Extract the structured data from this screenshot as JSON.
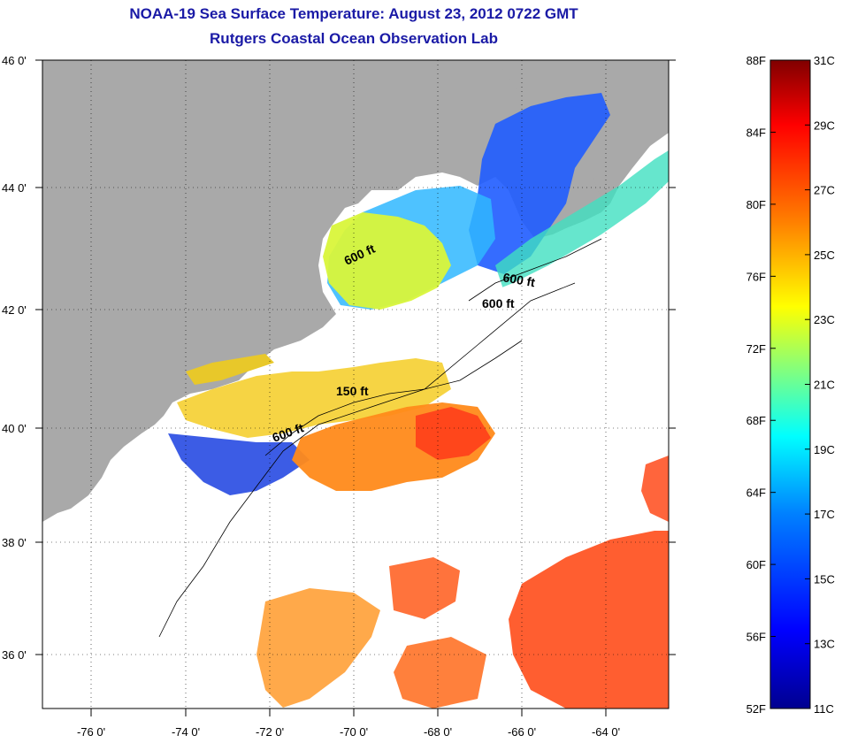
{
  "header": {
    "title": "NOAA-19 Sea Surface Temperature:  August 23, 2012 0722 GMT",
    "subtitle": "Rutgers Coastal Ocean Observation Lab"
  },
  "map": {
    "lon_ticks": [
      "-76 0'",
      "-74 0'",
      "-72 0'",
      "-70 0'",
      "-68 0'",
      "-66 0'",
      "-64 0'"
    ],
    "lat_ticks": [
      "46 0'",
      "44 0'",
      "42 0'",
      "40 0'",
      "38 0'",
      "36 0'"
    ],
    "contour_labels": [
      "600 ft",
      "600 ft",
      "600 ft",
      "150 ft",
      "600 ft"
    ],
    "colors": {
      "land": "#a9a9a9",
      "no_data": "#ffffff"
    }
  },
  "colorbar": {
    "f_labels": [
      "88F",
      "84F",
      "80F",
      "76F",
      "72F",
      "68F",
      "64F",
      "60F",
      "56F",
      "52F"
    ],
    "c_labels": [
      "31C",
      "29C",
      "27C",
      "25C",
      "23C",
      "21C",
      "19C",
      "17C",
      "15C",
      "13C",
      "11C"
    ],
    "stops": [
      "#00008f",
      "#0000ff",
      "#0080ff",
      "#00ffff",
      "#80ff80",
      "#ffff00",
      "#ff8000",
      "#ff0000",
      "#800000"
    ]
  }
}
